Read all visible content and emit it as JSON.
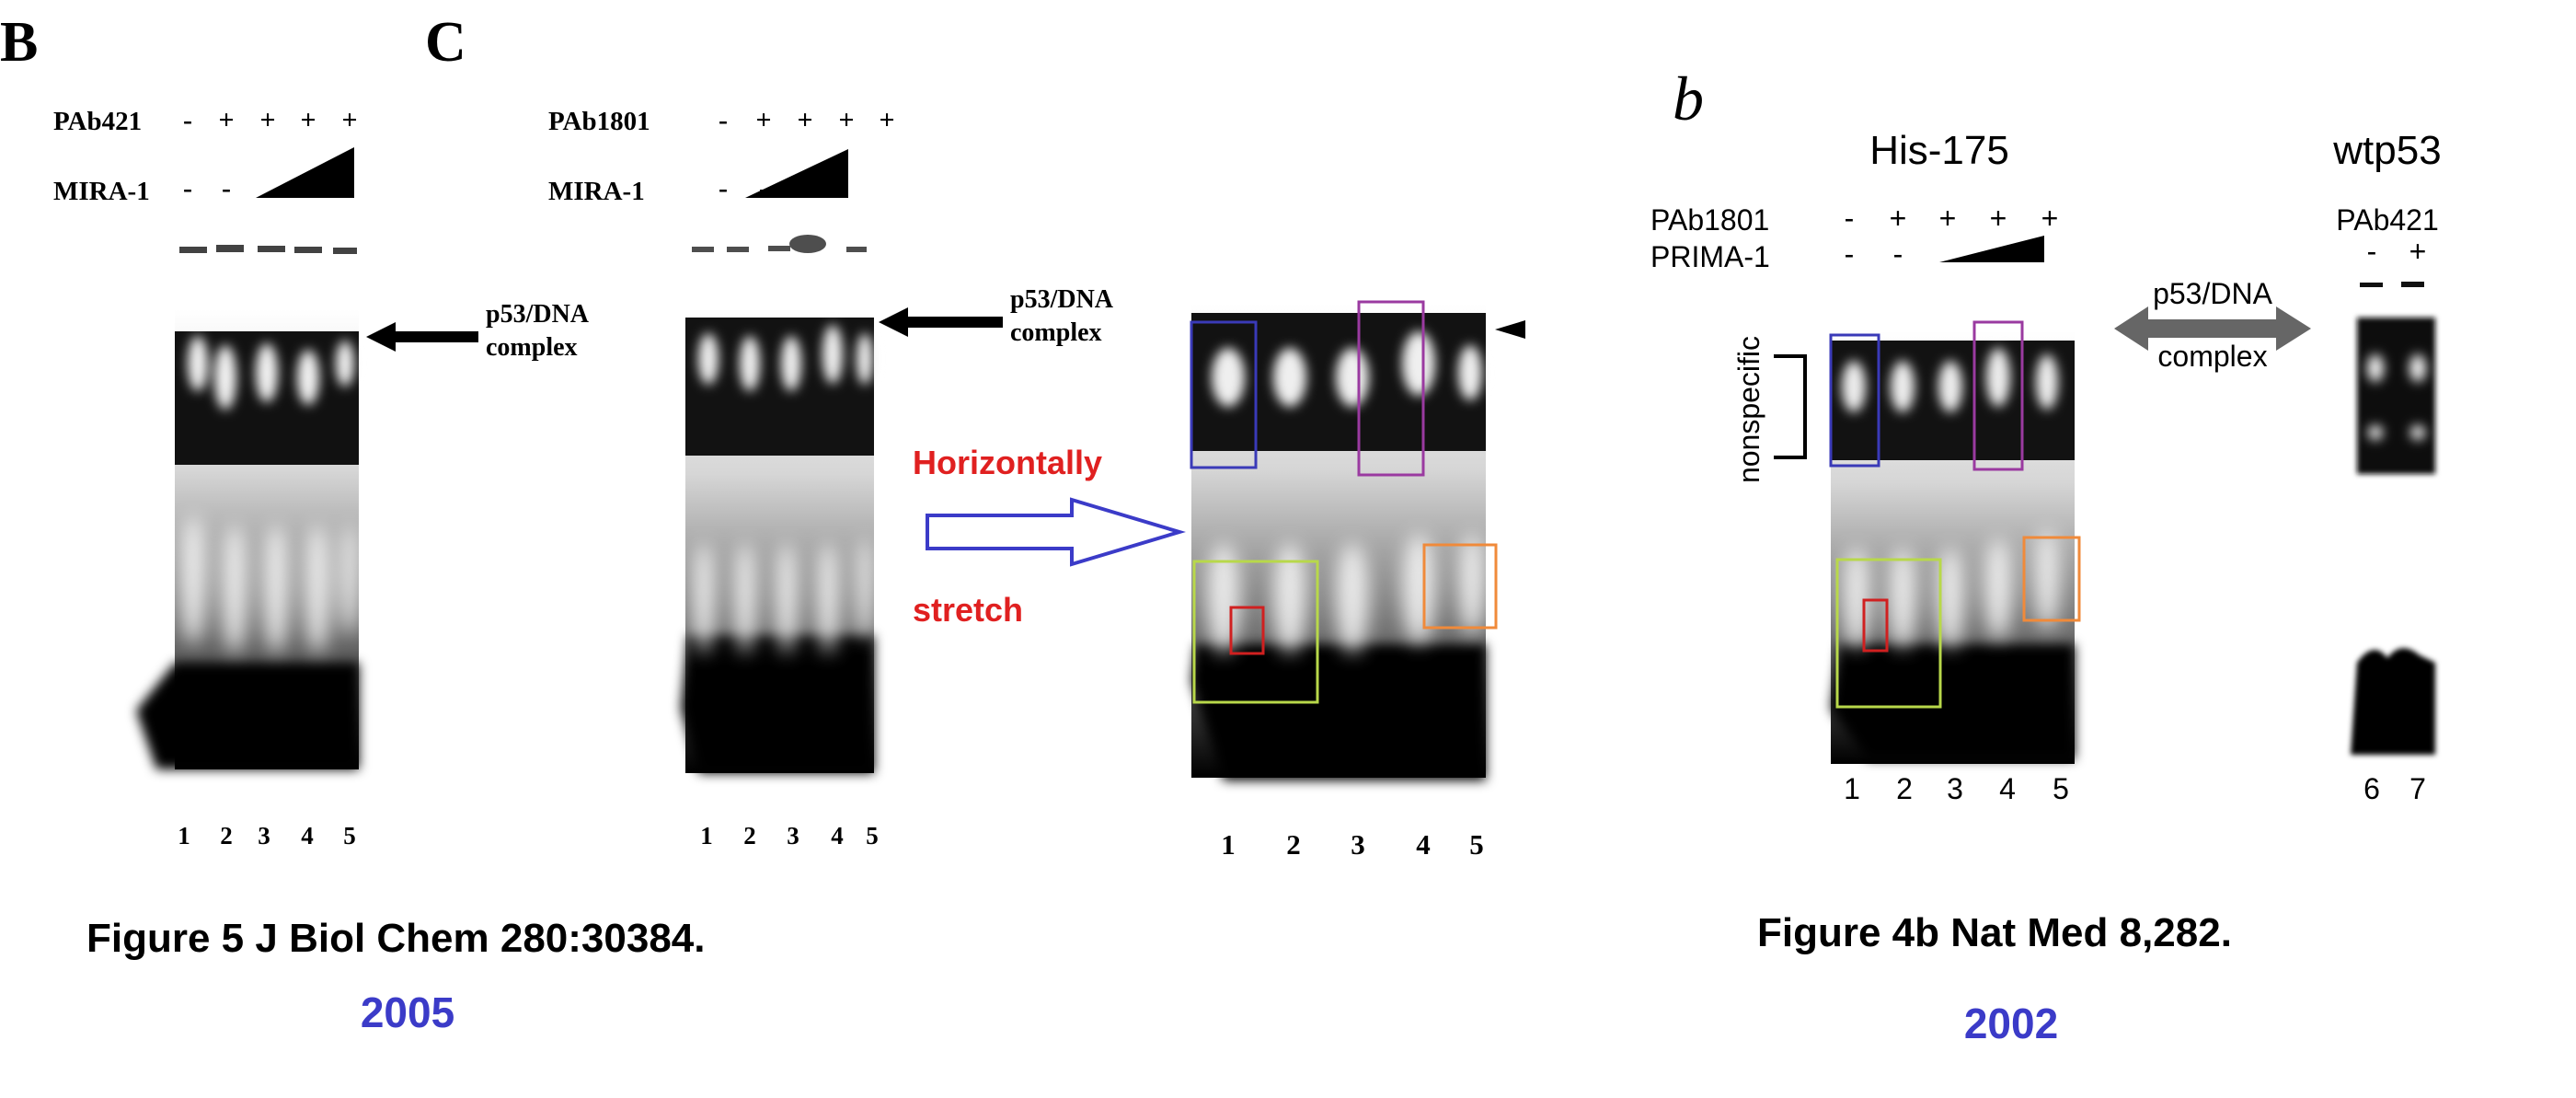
{
  "panel_b": {
    "letter": "B",
    "antibody_label": "PAb421",
    "antibody_signs": [
      "-",
      "+",
      "+",
      "+",
      "+"
    ],
    "drug_label": "MIRA-1",
    "drug_signs": [
      "-",
      "-"
    ],
    "complex_label_line1": "p53/DNA",
    "complex_label_line2": "complex",
    "lane_numbers": [
      "1",
      "2",
      "3",
      "4",
      "5"
    ]
  },
  "panel_c": {
    "letter": "C",
    "antibody_label": "PAb1801",
    "antibody_signs": [
      "-",
      "+",
      "+",
      "+",
      "+"
    ],
    "drug_label": "MIRA-1",
    "drug_signs": [
      "-",
      "-"
    ],
    "complex_label_line1": "p53/DNA",
    "complex_label_line2": "complex",
    "lane_numbers": [
      "1",
      "2",
      "3",
      "4",
      "5"
    ]
  },
  "annotation": {
    "line1": "Horizontally",
    "line2": "stretch",
    "color": "#e02020",
    "arrow_color": "#3b3bc8"
  },
  "stretched_panel": {
    "lane_numbers": [
      "1",
      "2",
      "3",
      "4",
      "5"
    ]
  },
  "panel_b_right": {
    "letter": "b",
    "his_title": "His-175",
    "wt_title": "wtp53",
    "antibody_label": "PAb1801",
    "antibody_signs": [
      "-",
      "+",
      "+",
      "+",
      "+"
    ],
    "drug_label": "PRIMA-1",
    "drug_signs": [
      "-",
      "-"
    ],
    "wt_antibody_label": "PAb421",
    "wt_signs": [
      "-",
      "+"
    ],
    "complex_label_line1": "p53/DNA",
    "complex_label_line2": "complex",
    "nonspecific_label": "nonspecific",
    "lane_numbers": [
      "1",
      "2",
      "3",
      "4",
      "5"
    ],
    "wt_lane_numbers": [
      "6",
      "7"
    ]
  },
  "captions": {
    "left_title": "Figure 5 J Biol Chem 280:30384.",
    "left_year": "2005",
    "right_title": "Figure 4b Nat Med 8,282.",
    "right_year": "2002",
    "year_color": "#3b3bc8"
  },
  "box_colors": {
    "blue": "#3a3ab8",
    "purple": "#9a3aa0",
    "green": "#b8d84a",
    "orange": "#f08a3a",
    "red": "#d02020"
  }
}
